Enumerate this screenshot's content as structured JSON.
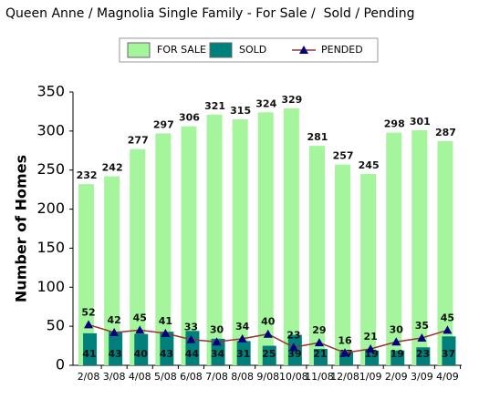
{
  "chart_data": {
    "type": "bar",
    "title": "Queen Anne / Magnolia Single Family - For Sale /  Sold / Pending",
    "y_label": "Number of Homes",
    "categories": [
      "2/08",
      "3/08",
      "4/08",
      "5/08",
      "6/08",
      "7/08",
      "8/08",
      "9/08",
      "10/08",
      "11/08",
      "12/08",
      "1/09",
      "2/09",
      "3/09",
      "4/09"
    ],
    "series": [
      {
        "name": "FOR SALE",
        "type": "bar",
        "color": "#a4f59c",
        "values": [
          232,
          242,
          277,
          297,
          306,
          321,
          315,
          324,
          329,
          281,
          257,
          245,
          298,
          301,
          287
        ]
      },
      {
        "name": "SOLD",
        "type": "bar",
        "color": "#00807a",
        "values": [
          41,
          43,
          40,
          43,
          44,
          34,
          31,
          25,
          39,
          21,
          17,
          19,
          19,
          23,
          37
        ]
      },
      {
        "name": "PENDED",
        "type": "line",
        "color": "#993333",
        "marker_color": "#000080",
        "values": [
          52,
          42,
          45,
          41,
          33,
          30,
          34,
          40,
          23,
          29,
          16,
          21,
          30,
          35,
          45
        ]
      }
    ],
    "ylim": [
      0,
      350
    ],
    "yticks": [
      0,
      50,
      100,
      150,
      200,
      250,
      300,
      350
    ],
    "legend": "top",
    "grid": false
  }
}
